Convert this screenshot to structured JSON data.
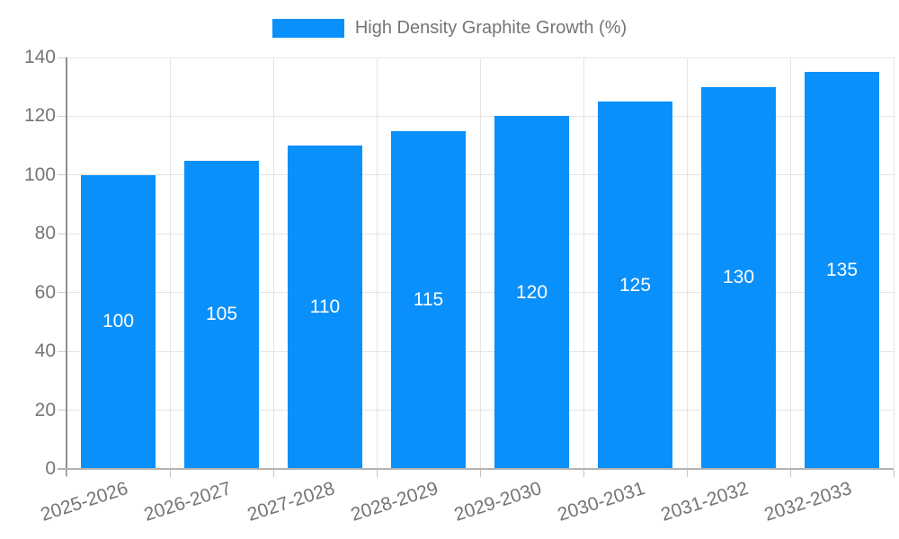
{
  "legend": {
    "label": "High Density Graphite Growth (%)"
  },
  "colors": {
    "bar": "#0a90fa",
    "bar_label": "#ffffff",
    "axis_text": "#757575",
    "grid": "#e4e4e4",
    "y_axis_line": "#8f8f8f",
    "x_axis_line": "#b3b3b3"
  },
  "chart_data": {
    "type": "bar",
    "title": "High Density Graphite Growth (%)",
    "categories": [
      "2025-2026",
      "2026-2027",
      "2027-2028",
      "2028-2029",
      "2029-2030",
      "2030-2031",
      "2031-2032",
      "2032-2033"
    ],
    "values": [
      100,
      105,
      110,
      115,
      120,
      125,
      130,
      135
    ],
    "bar_labels": [
      "100",
      "105",
      "110",
      "115",
      "120",
      "125",
      "130",
      "135"
    ],
    "xlabel": "",
    "ylabel": "",
    "ylim": [
      0,
      140
    ],
    "yticks": [
      0,
      20,
      40,
      60,
      80,
      100,
      120,
      140
    ],
    "grid": true,
    "legend_position": "top",
    "bar_label_position": "center-inside"
  }
}
